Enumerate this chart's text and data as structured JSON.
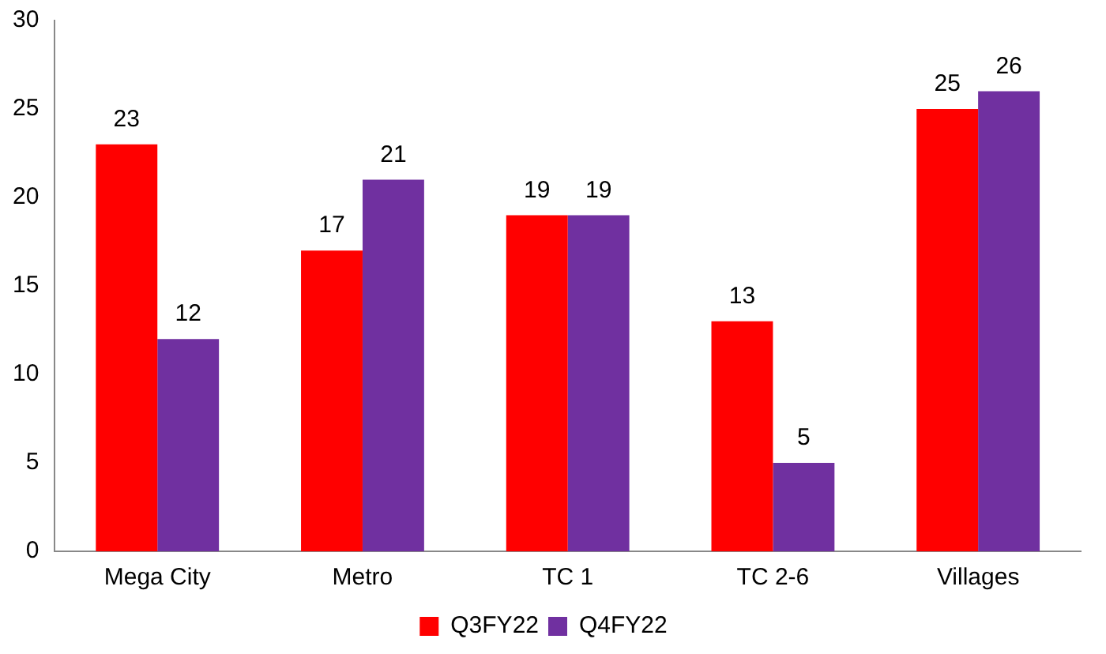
{
  "chart_data": {
    "type": "bar",
    "categories": [
      "Mega City",
      "Metro",
      "TC 1",
      "TC 2-6",
      "Villages"
    ],
    "series": [
      {
        "name": "Q3FY22",
        "color": "#ff0000",
        "values": [
          23,
          17,
          19,
          13,
          25
        ]
      },
      {
        "name": "Q4FY22",
        "color": "#7030a0",
        "values": [
          12,
          21,
          19,
          5,
          26
        ]
      }
    ],
    "ylim": [
      0,
      30
    ],
    "yticks": [
      0,
      5,
      10,
      15,
      20,
      25,
      30
    ],
    "grid": false,
    "legend": "bottom",
    "data_labels": true
  }
}
